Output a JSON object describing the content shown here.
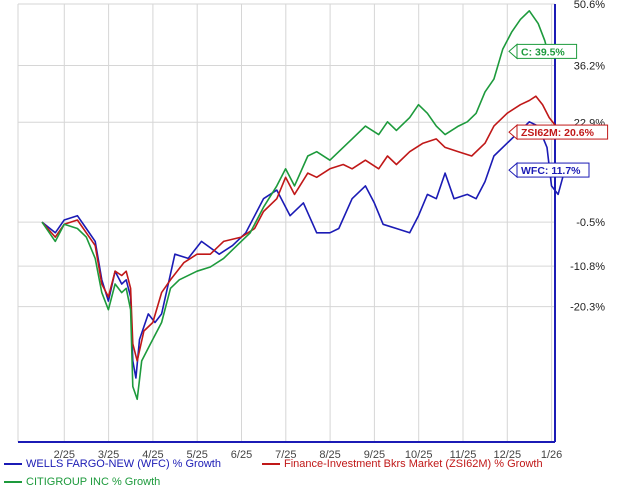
{
  "chart_data": {
    "type": "line",
    "x_ticks": [
      "2/25",
      "3/25",
      "4/25",
      "5/25",
      "6/25",
      "7/25",
      "8/25",
      "9/25",
      "10/25",
      "11/25",
      "12/25",
      "1/26"
    ],
    "y_ticks": [
      "50.6%",
      "36.2%",
      "22.9%",
      "-0.5%",
      "-10.8%",
      "-20.3%"
    ],
    "y_tick_values": [
      50.6,
      36.2,
      22.9,
      -0.5,
      -10.8,
      -20.3
    ],
    "ylim": [
      -52,
      50.6
    ],
    "grid": true,
    "legend_position": "bottom",
    "series": [
      {
        "name": "WELLS FARGO-NEW (WFC) % Growth",
        "color": "#1b1bb5",
        "end_label": "WFC: 11.7%",
        "values": [
          [
            0,
            -0.5
          ],
          [
            0.3,
            -3
          ],
          [
            0.5,
            0
          ],
          [
            0.8,
            1
          ],
          [
            1.0,
            -2
          ],
          [
            1.2,
            -5
          ],
          [
            1.35,
            -14
          ],
          [
            1.5,
            -19
          ],
          [
            1.65,
            -12
          ],
          [
            1.8,
            -15
          ],
          [
            1.9,
            -14
          ],
          [
            2.0,
            -18
          ],
          [
            2.05,
            -33
          ],
          [
            2.12,
            -37
          ],
          [
            2.2,
            -28
          ],
          [
            2.4,
            -22
          ],
          [
            2.55,
            -24
          ],
          [
            2.7,
            -22
          ],
          [
            3.0,
            -8
          ],
          [
            3.3,
            -9
          ],
          [
            3.6,
            -5
          ],
          [
            4.0,
            -8
          ],
          [
            4.3,
            -6
          ],
          [
            4.6,
            -3
          ],
          [
            5.0,
            5
          ],
          [
            5.3,
            7
          ],
          [
            5.6,
            1
          ],
          [
            5.9,
            4
          ],
          [
            6.2,
            -3
          ],
          [
            6.5,
            -3
          ],
          [
            6.7,
            -2
          ],
          [
            7.0,
            5
          ],
          [
            7.3,
            8
          ],
          [
            7.5,
            4
          ],
          [
            7.7,
            -1
          ],
          [
            8.0,
            -2
          ],
          [
            8.3,
            -3
          ],
          [
            8.5,
            1
          ],
          [
            8.7,
            6
          ],
          [
            8.9,
            5
          ],
          [
            9.1,
            11
          ],
          [
            9.3,
            5
          ],
          [
            9.6,
            6
          ],
          [
            9.8,
            5
          ],
          [
            10.0,
            9
          ],
          [
            10.2,
            15
          ],
          [
            10.5,
            18
          ],
          [
            10.8,
            21
          ],
          [
            11.0,
            23
          ],
          [
            11.2,
            22
          ],
          [
            11.4,
            17
          ],
          [
            11.5,
            8
          ],
          [
            11.65,
            6
          ],
          [
            11.8,
            11.7
          ]
        ]
      },
      {
        "name": "Finance-Investment Bkrs Market (ZSI62M) % Growth",
        "color": "#c01818",
        "end_label": "ZSI62M: 20.6%",
        "values": [
          [
            0,
            -0.5
          ],
          [
            0.3,
            -4
          ],
          [
            0.5,
            -1
          ],
          [
            0.8,
            0
          ],
          [
            1.0,
            -3
          ],
          [
            1.2,
            -6
          ],
          [
            1.35,
            -15
          ],
          [
            1.5,
            -18
          ],
          [
            1.65,
            -12
          ],
          [
            1.8,
            -13
          ],
          [
            1.9,
            -12
          ],
          [
            2.0,
            -16
          ],
          [
            2.05,
            -29
          ],
          [
            2.15,
            -33
          ],
          [
            2.3,
            -26
          ],
          [
            2.5,
            -24
          ],
          [
            2.7,
            -17
          ],
          [
            2.9,
            -14
          ],
          [
            3.2,
            -10
          ],
          [
            3.5,
            -8
          ],
          [
            3.8,
            -8
          ],
          [
            4.1,
            -5
          ],
          [
            4.5,
            -4
          ],
          [
            4.8,
            -2
          ],
          [
            5.0,
            2
          ],
          [
            5.3,
            5
          ],
          [
            5.5,
            10
          ],
          [
            5.7,
            6
          ],
          [
            6.0,
            11
          ],
          [
            6.2,
            10
          ],
          [
            6.5,
            12
          ],
          [
            6.8,
            13
          ],
          [
            7.0,
            12
          ],
          [
            7.3,
            14
          ],
          [
            7.6,
            12
          ],
          [
            7.8,
            15
          ],
          [
            8.0,
            13
          ],
          [
            8.3,
            16
          ],
          [
            8.6,
            18
          ],
          [
            8.9,
            19
          ],
          [
            9.1,
            17
          ],
          [
            9.4,
            16
          ],
          [
            9.7,
            15
          ],
          [
            10.0,
            18
          ],
          [
            10.2,
            22
          ],
          [
            10.5,
            25
          ],
          [
            10.8,
            27
          ],
          [
            11.0,
            28
          ],
          [
            11.15,
            29
          ],
          [
            11.3,
            27
          ],
          [
            11.45,
            24
          ],
          [
            11.6,
            22
          ],
          [
            11.8,
            20.6
          ]
        ]
      },
      {
        "name": "CITIGROUP INC % Growth",
        "color": "#1d9a3c",
        "end_label": "C: 39.5%",
        "values": [
          [
            0,
            -0.5
          ],
          [
            0.3,
            -5
          ],
          [
            0.5,
            -1
          ],
          [
            0.8,
            -2
          ],
          [
            1.0,
            -4
          ],
          [
            1.2,
            -9
          ],
          [
            1.35,
            -17
          ],
          [
            1.5,
            -21
          ],
          [
            1.65,
            -15
          ],
          [
            1.8,
            -17
          ],
          [
            1.9,
            -16
          ],
          [
            2.0,
            -21
          ],
          [
            2.05,
            -39
          ],
          [
            2.15,
            -42
          ],
          [
            2.25,
            -33
          ],
          [
            2.45,
            -29
          ],
          [
            2.7,
            -24
          ],
          [
            2.9,
            -16
          ],
          [
            3.1,
            -14
          ],
          [
            3.5,
            -12
          ],
          [
            3.8,
            -11
          ],
          [
            4.1,
            -9
          ],
          [
            4.4,
            -6
          ],
          [
            4.7,
            -3
          ],
          [
            5.0,
            3
          ],
          [
            5.3,
            8
          ],
          [
            5.5,
            12
          ],
          [
            5.7,
            8
          ],
          [
            6.0,
            15
          ],
          [
            6.2,
            16
          ],
          [
            6.5,
            14
          ],
          [
            6.8,
            17
          ],
          [
            7.0,
            19
          ],
          [
            7.3,
            22
          ],
          [
            7.6,
            20
          ],
          [
            7.8,
            23
          ],
          [
            8.0,
            21
          ],
          [
            8.3,
            24
          ],
          [
            8.5,
            27
          ],
          [
            8.7,
            25
          ],
          [
            8.9,
            22
          ],
          [
            9.1,
            20
          ],
          [
            9.4,
            22
          ],
          [
            9.6,
            23
          ],
          [
            9.8,
            25
          ],
          [
            10.0,
            30
          ],
          [
            10.2,
            33
          ],
          [
            10.4,
            40
          ],
          [
            10.6,
            44
          ],
          [
            10.8,
            47
          ],
          [
            11.0,
            49
          ],
          [
            11.2,
            46
          ],
          [
            11.35,
            42
          ],
          [
            11.45,
            38
          ],
          [
            11.6,
            40
          ],
          [
            11.8,
            39.5
          ]
        ]
      }
    ]
  }
}
